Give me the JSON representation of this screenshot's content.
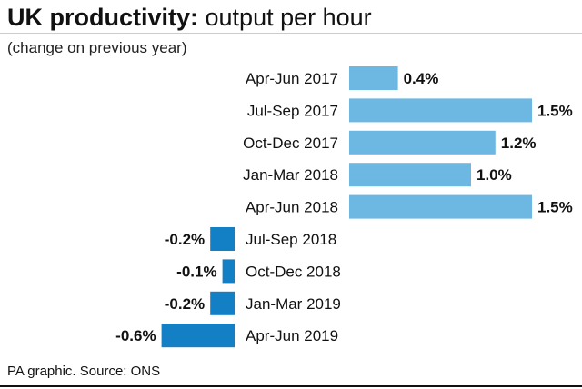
{
  "header": {
    "title_bold": "UK productivity:",
    "title_rest": " output per hour",
    "subtitle": "(change on previous year)"
  },
  "footer": {
    "source": "PA graphic. Source: ONS"
  },
  "colors": {
    "positive": "#6cb8e2",
    "negative": "#1380c6",
    "text": "#111111"
  },
  "chart_data": {
    "type": "bar",
    "orientation": "horizontal",
    "title": "UK productivity: output per hour",
    "subtitle": "(change on previous year)",
    "unit": "%",
    "categories": [
      "Apr-Jun 2017",
      "Jul-Sep 2017",
      "Oct-Dec 2017",
      "Jan-Mar 2018",
      "Apr-Jun 2018",
      "Jul-Sep 2018",
      "Oct-Dec 2018",
      "Jan-Mar 2019",
      "Apr-Jun 2019"
    ],
    "values": [
      0.4,
      1.5,
      1.2,
      1.0,
      1.5,
      -0.2,
      -0.1,
      -0.2,
      -0.6
    ],
    "data_labels": [
      "0.4%",
      "1.5%",
      "1.2%",
      "1.0%",
      "1.5%",
      "-0.2%",
      "-0.1%",
      "-0.2%",
      "-0.6%"
    ],
    "xlim": [
      -0.6,
      1.5
    ],
    "grid": false,
    "legend": "none"
  }
}
